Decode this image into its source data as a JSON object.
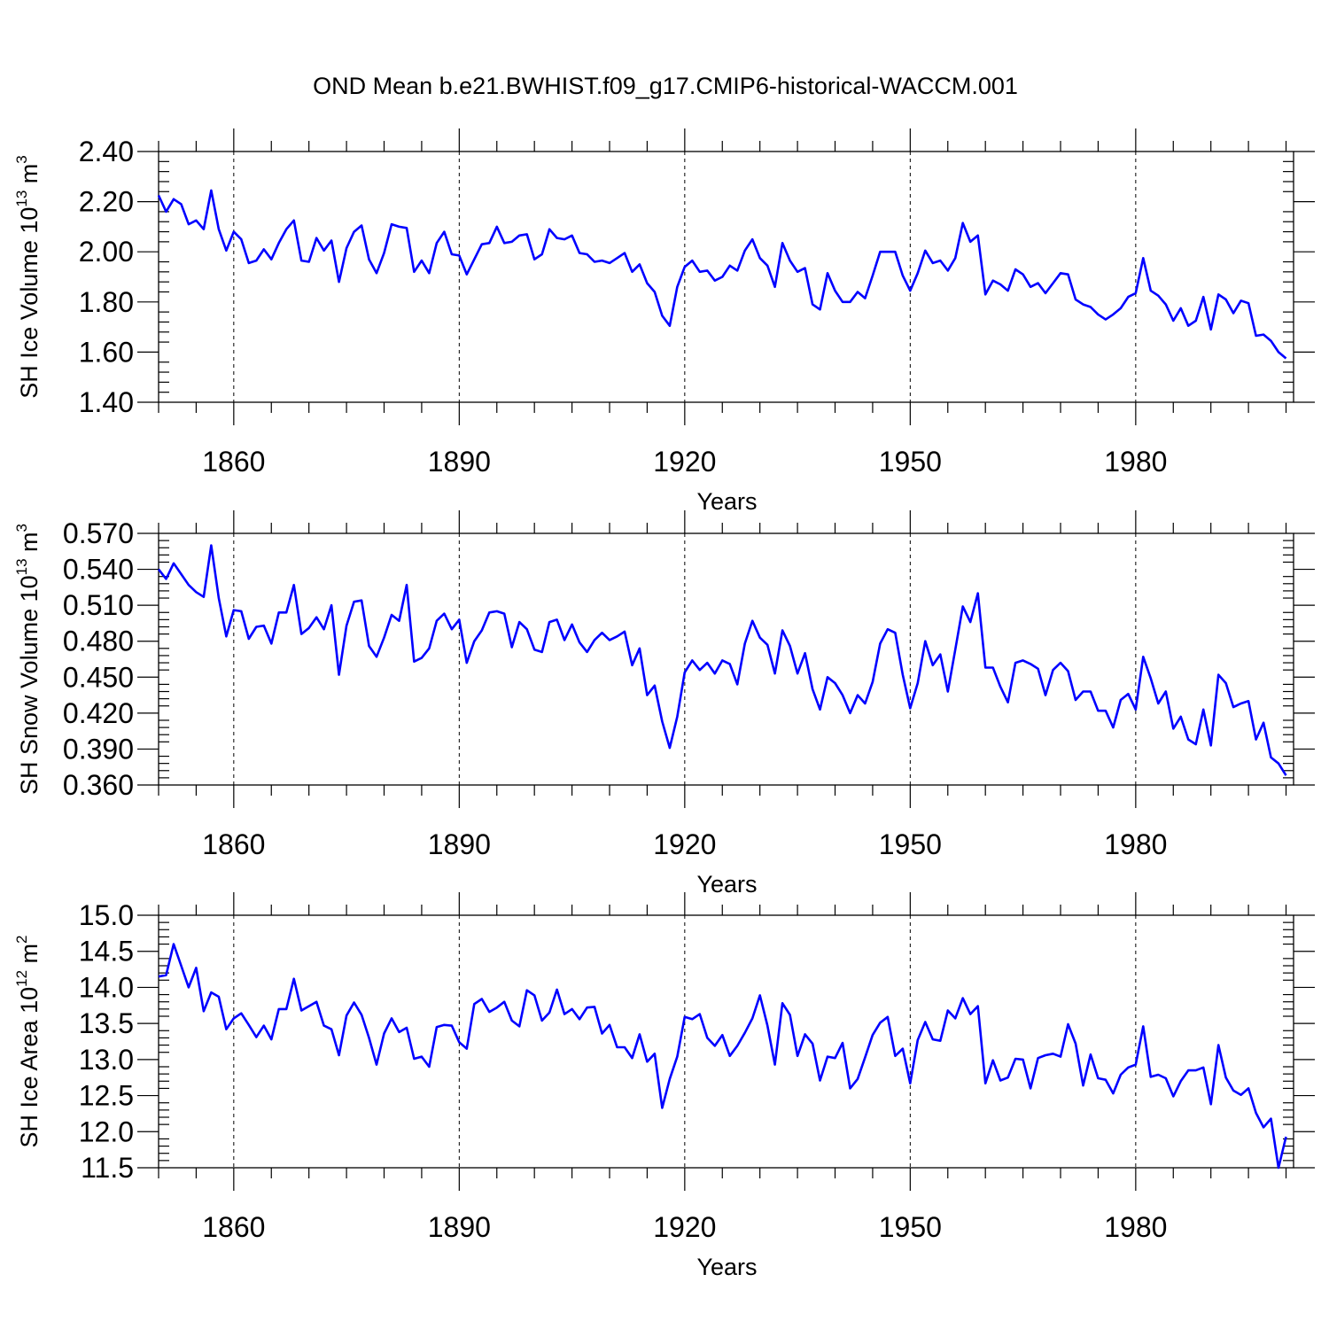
{
  "figure": {
    "title": "OND Mean b.e21.BWHIST.f09_g17.CMIP6-historical-WACCM.001",
    "line_color": "#0000ff"
  },
  "chart_data": [
    {
      "type": "line",
      "title": "OND Mean b.e21.BWHIST.f09_g17.CMIP6-historical-WACCM.001",
      "xlabel": "Years",
      "ylabel_main": "SH Ice Volume 10",
      "ylabel_exp": "13",
      "ylabel_unit": "m",
      "ylabel_unit_exp": "3",
      "xlim": [
        1850,
        2001
      ],
      "ylim": [
        1.4,
        2.4
      ],
      "x_ticks": [
        1860,
        1890,
        1920,
        1950,
        1980
      ],
      "x_tick_labels": [
        "1860",
        "1890",
        "1920",
        "1950",
        "1980"
      ],
      "y_ticks": [
        1.4,
        1.6,
        1.8,
        2.0,
        2.2,
        2.4
      ],
      "y_tick_labels": [
        "1.40",
        "1.60",
        "1.80",
        "2.00",
        "2.20",
        "2.40"
      ],
      "x_start": 1850,
      "series": [
        {
          "name": "SH Ice Volume",
          "color": "#0000ff",
          "values": [
            2.225,
            2.16,
            2.21,
            2.19,
            2.11,
            2.125,
            2.09,
            2.245,
            2.09,
            2.005,
            2.08,
            2.05,
            1.955,
            1.965,
            2.01,
            1.97,
            2.035,
            2.09,
            2.125,
            1.965,
            1.96,
            2.055,
            2.005,
            2.045,
            1.88,
            2.015,
            2.08,
            2.105,
            1.97,
            1.915,
            1.995,
            2.11,
            2.1,
            2.095,
            1.92,
            1.965,
            1.915,
            2.035,
            2.08,
            1.99,
            1.985,
            1.91,
            1.97,
            2.03,
            2.035,
            2.1,
            2.035,
            2.04,
            2.065,
            2.07,
            1.97,
            1.99,
            2.09,
            2.055,
            2.05,
            2.065,
            1.995,
            1.99,
            1.96,
            1.965,
            1.955,
            1.975,
            1.995,
            1.92,
            1.95,
            1.875,
            1.84,
            1.745,
            1.705,
            1.86,
            1.94,
            1.965,
            1.92,
            1.925,
            1.885,
            1.9,
            1.945,
            1.925,
            2.005,
            2.05,
            1.975,
            1.945,
            1.86,
            2.035,
            1.965,
            1.92,
            1.935,
            1.79,
            1.77,
            1.915,
            1.845,
            1.8,
            1.8,
            1.84,
            1.815,
            1.905,
            2.0,
            2.0,
            2.0,
            1.905,
            1.845,
            1.915,
            2.005,
            1.955,
            1.965,
            1.925,
            1.975,
            2.115,
            2.04,
            2.065,
            1.83,
            1.885,
            1.87,
            1.845,
            1.93,
            1.91,
            1.86,
            1.875,
            1.835,
            1.875,
            1.915,
            1.91,
            1.81,
            1.79,
            1.78,
            1.75,
            1.73,
            1.75,
            1.775,
            1.82,
            1.835,
            1.975,
            1.845,
            1.825,
            1.79,
            1.725,
            1.775,
            1.705,
            1.725,
            1.82,
            1.69,
            1.83,
            1.81,
            1.755,
            1.805,
            1.795,
            1.665,
            1.67,
            1.645,
            1.6,
            1.575
          ]
        }
      ]
    },
    {
      "type": "line",
      "xlabel": "Years",
      "ylabel_main": "SH Snow Volume 10",
      "ylabel_exp": "13",
      "ylabel_unit": "m",
      "ylabel_unit_exp": "3",
      "xlim": [
        1850,
        2001
      ],
      "ylim": [
        0.36,
        0.57
      ],
      "x_ticks": [
        1860,
        1890,
        1920,
        1950,
        1980
      ],
      "x_tick_labels": [
        "1860",
        "1890",
        "1920",
        "1950",
        "1980"
      ],
      "y_ticks": [
        0.36,
        0.39,
        0.42,
        0.45,
        0.48,
        0.51,
        0.54,
        0.57
      ],
      "y_tick_labels": [
        "0.360",
        "0.390",
        "0.420",
        "0.450",
        "0.480",
        "0.510",
        "0.540",
        "0.570"
      ],
      "x_start": 1850,
      "series": [
        {
          "name": "SH Snow Volume",
          "color": "#0000ff",
          "values": [
            0.54,
            0.532,
            0.545,
            0.536,
            0.527,
            0.521,
            0.517,
            0.56,
            0.516,
            0.484,
            0.506,
            0.505,
            0.482,
            0.492,
            0.493,
            0.478,
            0.504,
            0.504,
            0.527,
            0.486,
            0.491,
            0.5,
            0.49,
            0.51,
            0.452,
            0.493,
            0.513,
            0.514,
            0.476,
            0.467,
            0.483,
            0.502,
            0.497,
            0.527,
            0.463,
            0.466,
            0.474,
            0.497,
            0.503,
            0.49,
            0.498,
            0.462,
            0.48,
            0.489,
            0.504,
            0.505,
            0.503,
            0.475,
            0.496,
            0.49,
            0.473,
            0.471,
            0.496,
            0.498,
            0.481,
            0.494,
            0.479,
            0.471,
            0.481,
            0.487,
            0.481,
            0.484,
            0.488,
            0.46,
            0.474,
            0.435,
            0.443,
            0.413,
            0.391,
            0.417,
            0.454,
            0.464,
            0.456,
            0.462,
            0.453,
            0.464,
            0.461,
            0.444,
            0.478,
            0.497,
            0.483,
            0.477,
            0.453,
            0.489,
            0.476,
            0.453,
            0.47,
            0.44,
            0.423,
            0.45,
            0.445,
            0.435,
            0.42,
            0.435,
            0.428,
            0.446,
            0.478,
            0.49,
            0.487,
            0.452,
            0.424,
            0.445,
            0.48,
            0.46,
            0.469,
            0.438,
            0.473,
            0.509,
            0.496,
            0.52,
            0.458,
            0.458,
            0.442,
            0.429,
            0.462,
            0.464,
            0.461,
            0.457,
            0.435,
            0.456,
            0.462,
            0.455,
            0.431,
            0.438,
            0.438,
            0.422,
            0.422,
            0.408,
            0.431,
            0.436,
            0.423,
            0.467,
            0.449,
            0.428,
            0.438,
            0.407,
            0.417,
            0.398,
            0.394,
            0.423,
            0.393,
            0.452,
            0.445,
            0.425,
            0.428,
            0.43,
            0.398,
            0.412,
            0.383,
            0.378,
            0.368
          ]
        }
      ]
    },
    {
      "type": "line",
      "xlabel": "Years",
      "ylabel_main": "SH Ice Area 10",
      "ylabel_exp": "12",
      "ylabel_unit": "m",
      "ylabel_unit_exp": "2",
      "xlim": [
        1850,
        2001
      ],
      "ylim": [
        11.5,
        15.0
      ],
      "x_ticks": [
        1860,
        1890,
        1920,
        1950,
        1980
      ],
      "x_tick_labels": [
        "1860",
        "1890",
        "1920",
        "1950",
        "1980"
      ],
      "y_ticks": [
        11.5,
        12.0,
        12.5,
        13.0,
        13.5,
        14.0,
        14.5,
        15.0
      ],
      "y_tick_labels": [
        "11.5",
        "12.0",
        "12.5",
        "13.0",
        "13.5",
        "14.0",
        "14.5",
        "15.0"
      ],
      "x_start": 1850,
      "series": [
        {
          "name": "SH Ice Area",
          "color": "#0000ff",
          "values": [
            14.15,
            14.17,
            14.6,
            14.3,
            14.0,
            14.27,
            13.67,
            13.93,
            13.87,
            13.42,
            13.57,
            13.64,
            13.48,
            13.31,
            13.47,
            13.28,
            13.7,
            13.7,
            14.12,
            13.68,
            13.74,
            13.8,
            13.47,
            13.42,
            13.06,
            13.61,
            13.79,
            13.62,
            13.3,
            12.93,
            13.36,
            13.57,
            13.38,
            13.44,
            13.01,
            13.04,
            12.9,
            13.45,
            13.48,
            13.47,
            13.24,
            13.15,
            13.77,
            13.84,
            13.66,
            13.72,
            13.8,
            13.54,
            13.46,
            13.96,
            13.89,
            13.54,
            13.65,
            13.97,
            13.63,
            13.7,
            13.56,
            13.72,
            13.73,
            13.36,
            13.48,
            13.17,
            13.17,
            13.02,
            13.35,
            12.97,
            13.08,
            12.33,
            12.73,
            13.04,
            13.59,
            13.56,
            13.63,
            13.3,
            13.19,
            13.34,
            13.05,
            13.19,
            13.37,
            13.57,
            13.89,
            13.47,
            12.93,
            13.78,
            13.62,
            13.05,
            13.35,
            13.22,
            12.71,
            13.04,
            13.02,
            13.23,
            12.6,
            12.73,
            13.03,
            13.34,
            13.51,
            13.59,
            13.05,
            13.15,
            12.67,
            13.27,
            13.52,
            13.28,
            13.26,
            13.68,
            13.57,
            13.85,
            13.63,
            13.74,
            12.67,
            12.99,
            12.71,
            12.75,
            13.01,
            13.0,
            12.6,
            13.02,
            13.06,
            13.08,
            13.04,
            13.49,
            13.22,
            12.64,
            13.07,
            12.74,
            12.72,
            12.53,
            12.79,
            12.89,
            12.93,
            13.46,
            12.76,
            12.79,
            12.74,
            12.49,
            12.7,
            12.85,
            12.85,
            12.89,
            12.38,
            13.2,
            12.75,
            12.57,
            12.51,
            12.6,
            12.26,
            12.06,
            12.18,
            11.5,
            11.93
          ]
        }
      ]
    }
  ]
}
